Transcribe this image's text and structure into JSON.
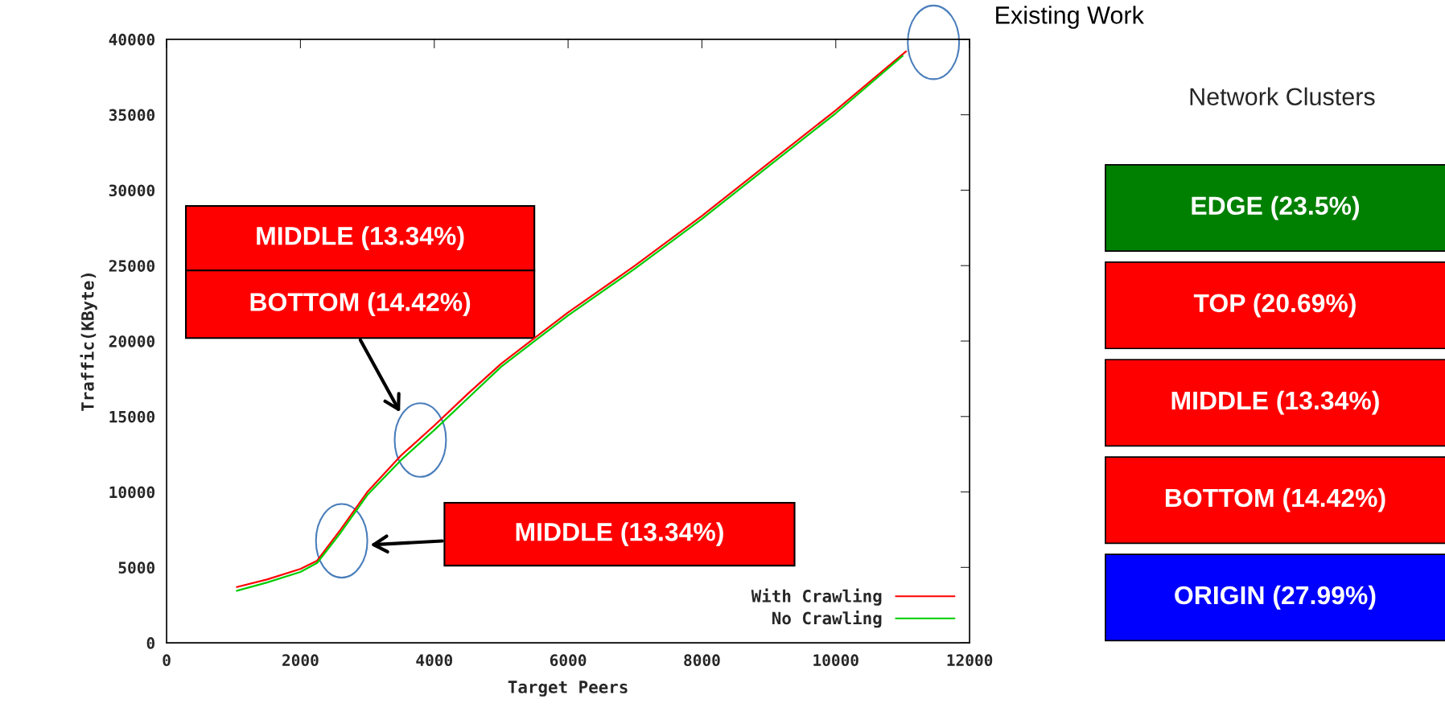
{
  "chart_data": [
    {
      "type": "line",
      "xlabel": "Target Peers",
      "ylabel": "Traffic(KByte)",
      "xlim": [
        0,
        12000
      ],
      "xticks": [
        0,
        2000,
        4000,
        6000,
        8000,
        10000,
        12000
      ],
      "ylim": [
        0,
        40000
      ],
      "yticks": [
        0,
        5000,
        10000,
        15000,
        20000,
        25000,
        30000,
        35000,
        40000
      ],
      "grid": false,
      "legend": "bottom right",
      "marker": "none",
      "line_style": "solid",
      "series": [
        {
          "name": "With Crawling",
          "color": "#ff0000",
          "x": [
            1050,
            1500,
            2000,
            2250,
            2600,
            3000,
            3500,
            4000,
            4500,
            5000,
            5500,
            6000,
            7000,
            8000,
            9000,
            10000,
            11050
          ],
          "values": [
            3700,
            4200,
            4900,
            5450,
            7500,
            10000,
            12400,
            14400,
            16500,
            18500,
            20200,
            21900,
            25000,
            28300,
            31800,
            35300,
            39200
          ]
        },
        {
          "name": "No Crawling",
          "color": "#00cc00",
          "x": [
            1050,
            1500,
            2000,
            2250,
            2600,
            3000,
            3500,
            4000,
            4500,
            5000,
            5500,
            6000,
            7000,
            8000,
            9000,
            10000,
            11000
          ],
          "values": [
            3450,
            4000,
            4700,
            5300,
            7300,
            9800,
            12100,
            14100,
            16200,
            18300,
            20000,
            21700,
            24800,
            28100,
            31600,
            35100,
            38900
          ]
        }
      ],
      "annotations": [
        "MIDDLE (13.34%)",
        "MIDDLE (13.34%)",
        "BOTTOM (14.42%)",
        "Existing Work"
      ]
    },
    {
      "type": "other",
      "title": "Network Clusters",
      "categories": [
        "EDGE (23.5%)",
        "TOP (20.69%)",
        "MIDDLE (13.34%)",
        "BOTTOM (14.42%)",
        "ORIGIN (27.99%)"
      ],
      "colors": [
        "#008000",
        "#ff0000",
        "#ff0000",
        "#ff0000",
        "#0000ff"
      ]
    }
  ]
}
